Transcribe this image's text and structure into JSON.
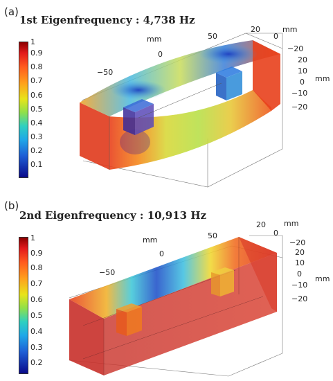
{
  "panels": [
    {
      "label": "(a)",
      "title": "1st Eigenfrequency : 4,738 Hz",
      "colorbar": [
        "1",
        "0.9",
        "0.8",
        "0.7",
        "0.6",
        "0.5",
        "0.4",
        "0.3",
        "0.2",
        "0.1"
      ],
      "axes": {
        "x_label": "mm",
        "x_ticks": [
          "−50",
          "0",
          "50"
        ],
        "y_label": "mm",
        "y_ticks": [
          "20",
          "0",
          "−20"
        ],
        "z_label": "mm",
        "z_ticks": [
          "20",
          "10",
          "0",
          "−10",
          "−20"
        ]
      }
    },
    {
      "label": "(b)",
      "title": "2nd Eigenfrequency : 10,913 Hz",
      "colorbar": [
        "1",
        "0.9",
        "0.8",
        "0.7",
        "0.6",
        "0.5",
        "0.4",
        "0.3",
        "0.2"
      ],
      "axes": {
        "x_label": "mm",
        "x_ticks": [
          "−50",
          "0",
          "50"
        ],
        "y_label": "mm",
        "y_ticks": [
          "20",
          "0",
          "−20"
        ],
        "z_label": "mm",
        "z_ticks": [
          "20",
          "10",
          "0",
          "−10",
          "−20"
        ]
      }
    }
  ]
}
